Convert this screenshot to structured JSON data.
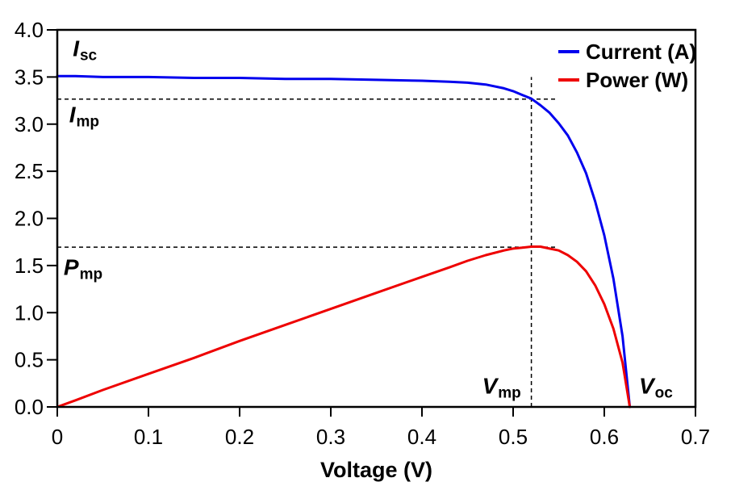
{
  "figure": {
    "background": "#ffffff",
    "plot_border_color": "#000000"
  },
  "chart_data": {
    "type": "line",
    "title": "",
    "xlabel": "Voltage (V)",
    "ylabel": "",
    "xlim": [
      0,
      0.7
    ],
    "ylim": [
      0,
      4.0
    ],
    "grid": false,
    "x_ticks": [
      0,
      0.1,
      0.2,
      0.3,
      0.4,
      0.5,
      0.6,
      0.7
    ],
    "x_tick_labels": [
      "0",
      "0.1",
      "0.2",
      "0.3",
      "0.4",
      "0.5",
      "0.6",
      "0.7"
    ],
    "y_ticks": [
      0,
      0.5,
      1.0,
      1.5,
      2.0,
      2.5,
      3.0,
      3.5,
      4.0
    ],
    "y_tick_labels": [
      "0.0",
      "0.5",
      "1.0",
      "1.5",
      "2.0",
      "2.5",
      "3.0",
      "3.5",
      "4.0"
    ],
    "x": [
      0,
      0.02,
      0.05,
      0.1,
      0.15,
      0.2,
      0.25,
      0.3,
      0.35,
      0.4,
      0.43,
      0.45,
      0.47,
      0.49,
      0.5,
      0.51,
      0.52,
      0.53,
      0.54,
      0.55,
      0.56,
      0.57,
      0.58,
      0.59,
      0.6,
      0.61,
      0.62,
      0.628
    ],
    "series": [
      {
        "name": "Current (A)",
        "color": "#0000ee",
        "values": [
          3.51,
          3.51,
          3.5,
          3.5,
          3.49,
          3.49,
          3.48,
          3.48,
          3.47,
          3.46,
          3.45,
          3.44,
          3.42,
          3.38,
          3.35,
          3.31,
          3.27,
          3.2,
          3.12,
          3.01,
          2.88,
          2.7,
          2.48,
          2.18,
          1.82,
          1.36,
          0.75,
          0
        ]
      },
      {
        "name": "Power (W)",
        "color": "#ee0000",
        "values": [
          0,
          0.07,
          0.18,
          0.35,
          0.52,
          0.7,
          0.87,
          1.04,
          1.21,
          1.38,
          1.48,
          1.55,
          1.61,
          1.66,
          1.68,
          1.69,
          1.7,
          1.7,
          1.68,
          1.66,
          1.61,
          1.54,
          1.44,
          1.29,
          1.09,
          0.83,
          0.47,
          0
        ]
      }
    ],
    "legend": {
      "position": "top-right-inside",
      "entries": [
        {
          "label": "Current (A)",
          "color": "#0000ee"
        },
        {
          "label": "Power (W)",
          "color": "#ee0000"
        }
      ]
    },
    "key_points": {
      "I_sc": 3.5,
      "I_mp": 3.27,
      "V_mp": 0.52,
      "P_mp": 1.7,
      "V_oc": 0.628
    },
    "guide_lines": [
      {
        "orientation": "h",
        "at": 3.265,
        "from": 0,
        "to": 0.548
      },
      {
        "orientation": "h",
        "at": 1.695,
        "from": 0,
        "to": 0.548
      },
      {
        "orientation": "v",
        "at": 0.52,
        "from": 0,
        "to": 3.5
      }
    ],
    "annotations": [
      {
        "id": "isc-label",
        "main": "I",
        "sub": "sc",
        "x": 0.017,
        "y": 3.72
      },
      {
        "id": "imp-label",
        "main": "I",
        "sub": "mp",
        "x": 0.013,
        "y": 3.02
      },
      {
        "id": "pmp-label",
        "main": "P",
        "sub": "mp",
        "x": 0.007,
        "y": 1.4
      },
      {
        "id": "vmp-label",
        "main": "V",
        "sub": "mp",
        "x": 0.466,
        "y": 0.14
      },
      {
        "id": "voc-label",
        "main": "V",
        "sub": "oc",
        "x": 0.638,
        "y": 0.14
      }
    ]
  }
}
